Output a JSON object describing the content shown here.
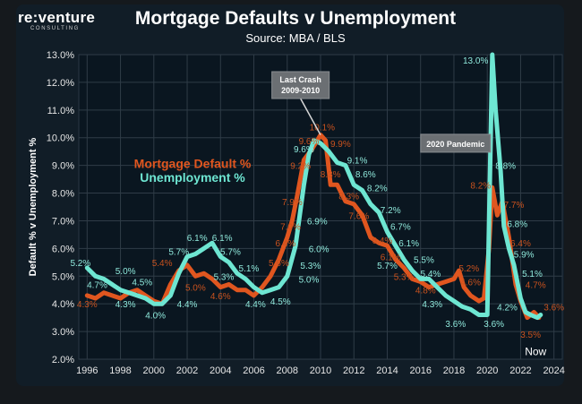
{
  "header": {
    "logo_main": "re:venture",
    "logo_sub": "CONSULTING",
    "title": "Mortgage Defaults v Unemployment",
    "subtitle": "Source: MBA / BLS"
  },
  "chart_data": {
    "type": "line",
    "ylabel": "Default % v Unemployment %",
    "ylim": [
      2.0,
      13.0
    ],
    "xlim": [
      1995.5,
      2024.5
    ],
    "y_ticks": [
      "2.0%",
      "3.0%",
      "4.0%",
      "5.0%",
      "6.0%",
      "7.0%",
      "8.0%",
      "9.0%",
      "10.0%",
      "11.0%",
      "12.0%",
      "13.0%"
    ],
    "x_ticks": [
      "1996",
      "1998",
      "2000",
      "2002",
      "2004",
      "2006",
      "2008",
      "2010",
      "2012",
      "2014",
      "2016",
      "2018",
      "2020",
      "2022",
      "2024"
    ],
    "grid": true,
    "legend": {
      "placement": "left-middle",
      "entries": [
        "Mortgage Default %",
        "Unemployment %"
      ]
    },
    "series": [
      {
        "name": "Mortgage Default %",
        "color": "#e0561f",
        "points": [
          [
            1996.0,
            4.3
          ],
          [
            1996.5,
            4.2
          ],
          [
            1997.0,
            4.4
          ],
          [
            1997.5,
            4.3
          ],
          [
            1998.0,
            4.2
          ],
          [
            1998.5,
            4.4
          ],
          [
            1999.0,
            4.5
          ],
          [
            1999.5,
            4.3
          ],
          [
            2000.0,
            4.1
          ],
          [
            2000.5,
            4.0
          ],
          [
            2001.0,
            4.7
          ],
          [
            2001.5,
            5.2
          ],
          [
            2002.0,
            5.4
          ],
          [
            2002.5,
            5.0
          ],
          [
            2003.0,
            5.1
          ],
          [
            2003.5,
            4.9
          ],
          [
            2004.0,
            4.6
          ],
          [
            2004.5,
            4.7
          ],
          [
            2005.0,
            4.5
          ],
          [
            2005.5,
            4.5
          ],
          [
            2006.0,
            4.3
          ],
          [
            2006.5,
            4.6
          ],
          [
            2007.0,
            5.0
          ],
          [
            2007.5,
            5.6
          ],
          [
            2008.0,
            6.4
          ],
          [
            2008.3,
            7.0
          ],
          [
            2008.6,
            7.9
          ],
          [
            2009.0,
            9.2
          ],
          [
            2009.5,
            9.6
          ],
          [
            2010.0,
            10.1
          ],
          [
            2010.3,
            9.9
          ],
          [
            2010.6,
            8.3
          ],
          [
            2011.0,
            8.3
          ],
          [
            2011.5,
            7.7
          ],
          [
            2012.0,
            7.6
          ],
          [
            2012.5,
            7.2
          ],
          [
            2013.0,
            6.4
          ],
          [
            2013.5,
            6.2
          ],
          [
            2014.0,
            6.1
          ],
          [
            2014.5,
            5.6
          ],
          [
            2015.0,
            5.3
          ],
          [
            2015.5,
            4.9
          ],
          [
            2016.0,
            4.8
          ],
          [
            2016.5,
            4.6
          ],
          [
            2017.0,
            4.7
          ],
          [
            2017.5,
            4.8
          ],
          [
            2018.0,
            4.9
          ],
          [
            2018.3,
            5.2
          ],
          [
            2018.6,
            4.6
          ],
          [
            2019.0,
            4.3
          ],
          [
            2019.5,
            4.1
          ],
          [
            2019.8,
            4.2
          ],
          [
            2020.1,
            6.0
          ],
          [
            2020.3,
            8.2
          ],
          [
            2020.6,
            7.2
          ],
          [
            2020.9,
            7.7
          ],
          [
            2021.3,
            6.4
          ],
          [
            2021.7,
            4.7
          ],
          [
            2022.0,
            4.1
          ],
          [
            2022.4,
            3.5
          ],
          [
            2022.8,
            3.7
          ],
          [
            2023.1,
            3.5
          ]
        ]
      },
      {
        "name": "Unemployment %",
        "color": "#6ee6d2",
        "points": [
          [
            1996.0,
            5.3
          ],
          [
            1996.5,
            5.0
          ],
          [
            1997.0,
            4.9
          ],
          [
            1997.5,
            4.7
          ],
          [
            1998.0,
            4.5
          ],
          [
            1998.5,
            4.4
          ],
          [
            1999.0,
            4.3
          ],
          [
            1999.5,
            4.2
          ],
          [
            2000.0,
            4.0
          ],
          [
            2000.5,
            4.0
          ],
          [
            2001.0,
            4.3
          ],
          [
            2001.5,
            5.1
          ],
          [
            2002.0,
            5.7
          ],
          [
            2002.5,
            5.8
          ],
          [
            2003.0,
            6.0
          ],
          [
            2003.5,
            6.2
          ],
          [
            2004.0,
            5.7
          ],
          [
            2004.5,
            5.5
          ],
          [
            2005.0,
            5.1
          ],
          [
            2005.5,
            4.9
          ],
          [
            2006.0,
            4.6
          ],
          [
            2006.5,
            4.4
          ],
          [
            2007.0,
            4.5
          ],
          [
            2007.5,
            4.6
          ],
          [
            2008.0,
            5.0
          ],
          [
            2008.5,
            6.1
          ],
          [
            2009.0,
            8.3
          ],
          [
            2009.3,
            9.4
          ],
          [
            2009.6,
            9.9
          ],
          [
            2010.0,
            9.8
          ],
          [
            2010.5,
            9.5
          ],
          [
            2011.0,
            9.1
          ],
          [
            2011.5,
            9.0
          ],
          [
            2012.0,
            8.3
          ],
          [
            2012.5,
            8.1
          ],
          [
            2013.0,
            7.6
          ],
          [
            2013.5,
            7.3
          ],
          [
            2014.0,
            6.6
          ],
          [
            2014.5,
            6.1
          ],
          [
            2015.0,
            5.6
          ],
          [
            2015.5,
            5.2
          ],
          [
            2016.0,
            4.9
          ],
          [
            2016.5,
            4.9
          ],
          [
            2017.0,
            4.6
          ],
          [
            2017.5,
            4.3
          ],
          [
            2018.0,
            4.1
          ],
          [
            2018.5,
            3.9
          ],
          [
            2019.0,
            3.8
          ],
          [
            2019.5,
            3.6
          ],
          [
            2020.0,
            3.6
          ],
          [
            2020.3,
            13.0
          ],
          [
            2020.5,
            11.0
          ],
          [
            2020.8,
            8.8
          ],
          [
            2021.0,
            6.8
          ],
          [
            2021.3,
            6.0
          ],
          [
            2021.6,
            5.4
          ],
          [
            2022.0,
            4.2
          ],
          [
            2022.3,
            3.7
          ],
          [
            2022.6,
            3.6
          ],
          [
            2023.0,
            3.5
          ],
          [
            2023.2,
            3.6
          ]
        ]
      }
    ],
    "data_labels": [
      {
        "text": "4.3%",
        "x": 1996.0,
        "y": 4.0,
        "series": "Mortgage Default %"
      },
      {
        "text": "5.4%",
        "x": 2000.5,
        "y": 5.5,
        "series": "Mortgage Default %"
      },
      {
        "text": "5.0%",
        "x": 2002.5,
        "y": 4.6,
        "series": "Mortgage Default %"
      },
      {
        "text": "4.6%",
        "x": 2004.0,
        "y": 4.3,
        "series": "Mortgage Default %"
      },
      {
        "text": "5.6%",
        "x": 2007.5,
        "y": 5.5,
        "series": "Mortgage Default %"
      },
      {
        "text": "6.4%",
        "x": 2007.9,
        "y": 6.2,
        "series": "Mortgage Default %"
      },
      {
        "text": "7.0%",
        "x": 2008.2,
        "y": 6.8,
        "series": "Mortgage Default %"
      },
      {
        "text": "7.9%",
        "x": 2008.3,
        "y": 7.7,
        "series": "Mortgage Default %"
      },
      {
        "text": "9.2%",
        "x": 2008.8,
        "y": 9.0,
        "series": "Mortgage Default %"
      },
      {
        "text": "9.6%",
        "x": 2009.3,
        "y": 9.9,
        "series": "Mortgage Default %"
      },
      {
        "text": "10.1%",
        "x": 2010.1,
        "y": 10.4,
        "series": "Mortgage Default %"
      },
      {
        "text": "9.9%",
        "x": 2011.2,
        "y": 9.8,
        "series": "Mortgage Default %"
      },
      {
        "text": "8.3%",
        "x": 2010.6,
        "y": 8.7,
        "series": "Mortgage Default %"
      },
      {
        "text": "8.3%",
        "x": 2011.7,
        "y": 7.9,
        "series": "Mortgage Default %"
      },
      {
        "text": "7.6%",
        "x": 2012.3,
        "y": 7.2,
        "series": "Mortgage Default %"
      },
      {
        "text": "6.4%",
        "x": 2013.7,
        "y": 6.3,
        "series": "Mortgage Default %"
      },
      {
        "text": "6.1%",
        "x": 2014.2,
        "y": 5.7,
        "series": "Mortgage Default %"
      },
      {
        "text": "5.3%",
        "x": 2015.0,
        "y": 5.0,
        "series": "Mortgage Default %"
      },
      {
        "text": "4.8%",
        "x": 2016.3,
        "y": 4.5,
        "series": "Mortgage Default %"
      },
      {
        "text": "5.2%",
        "x": 2018.9,
        "y": 5.3,
        "series": "Mortgage Default %"
      },
      {
        "text": "4.6%",
        "x": 2019.0,
        "y": 4.8,
        "series": "Mortgage Default %"
      },
      {
        "text": "8.2%",
        "x": 2019.6,
        "y": 8.3,
        "series": "Mortgage Default %"
      },
      {
        "text": "7.7%",
        "x": 2021.6,
        "y": 7.6,
        "series": "Mortgage Default %"
      },
      {
        "text": "6.4%",
        "x": 2022.0,
        "y": 6.2,
        "series": "Mortgage Default %"
      },
      {
        "text": "4.7%",
        "x": 2022.9,
        "y": 4.7,
        "series": "Mortgage Default %"
      },
      {
        "text": "3.5%",
        "x": 2022.6,
        "y": 2.9,
        "series": "Mortgage Default %"
      },
      {
        "text": "3.6%",
        "x": 2024.0,
        "y": 3.9,
        "series": "Mortgage Default %"
      },
      {
        "text": "5.2%",
        "x": 1995.6,
        "y": 5.5,
        "series": "Unemployment %"
      },
      {
        "text": "4.7%",
        "x": 1996.6,
        "y": 4.7,
        "series": "Unemployment %"
      },
      {
        "text": "5.0%",
        "x": 1998.3,
        "y": 5.2,
        "series": "Unemployment %"
      },
      {
        "text": "4.5%",
        "x": 1999.3,
        "y": 4.8,
        "series": "Unemployment %"
      },
      {
        "text": "4.3%",
        "x": 1998.3,
        "y": 4.0,
        "series": "Unemployment %"
      },
      {
        "text": "4.0%",
        "x": 2000.1,
        "y": 3.6,
        "series": "Unemployment %"
      },
      {
        "text": "4.4%",
        "x": 2002.0,
        "y": 4.0,
        "series": "Unemployment %"
      },
      {
        "text": "5.7%",
        "x": 2001.5,
        "y": 5.9,
        "series": "Unemployment %"
      },
      {
        "text": "6.1%",
        "x": 2002.6,
        "y": 6.4,
        "series": "Unemployment %"
      },
      {
        "text": "6.1%",
        "x": 2004.1,
        "y": 6.4,
        "series": "Unemployment %"
      },
      {
        "text": "5.7%",
        "x": 2004.6,
        "y": 5.9,
        "series": "Unemployment %"
      },
      {
        "text": "5.3%",
        "x": 2004.2,
        "y": 5.0,
        "series": "Unemployment %"
      },
      {
        "text": "5.1%",
        "x": 2005.7,
        "y": 5.3,
        "series": "Unemployment %"
      },
      {
        "text": "4.4%",
        "x": 2006.1,
        "y": 4.0,
        "series": "Unemployment %"
      },
      {
        "text": "4.5%",
        "x": 2007.6,
        "y": 4.1,
        "series": "Unemployment %"
      },
      {
        "text": "5.0%",
        "x": 2009.3,
        "y": 4.9,
        "series": "Unemployment %"
      },
      {
        "text": "5.3%",
        "x": 2009.4,
        "y": 5.4,
        "series": "Unemployment %"
      },
      {
        "text": "6.0%",
        "x": 2009.9,
        "y": 6.0,
        "series": "Unemployment %"
      },
      {
        "text": "6.9%",
        "x": 2009.8,
        "y": 7.0,
        "series": "Unemployment %"
      },
      {
        "text": "9.6%",
        "x": 2009.0,
        "y": 9.6,
        "series": "Unemployment %"
      },
      {
        "text": "9.1%",
        "x": 2012.2,
        "y": 9.2,
        "series": "Unemployment %"
      },
      {
        "text": "8.6%",
        "x": 2012.7,
        "y": 8.7,
        "series": "Unemployment %"
      },
      {
        "text": "8.2%",
        "x": 2013.4,
        "y": 8.2,
        "series": "Unemployment %"
      },
      {
        "text": "7.2%",
        "x": 2014.2,
        "y": 7.4,
        "series": "Unemployment %"
      },
      {
        "text": "6.7%",
        "x": 2014.8,
        "y": 6.8,
        "series": "Unemployment %"
      },
      {
        "text": "6.1%",
        "x": 2015.3,
        "y": 6.2,
        "series": "Unemployment %"
      },
      {
        "text": "5.7%",
        "x": 2014.0,
        "y": 5.4,
        "series": "Unemployment %"
      },
      {
        "text": "5.5%",
        "x": 2016.2,
        "y": 5.6,
        "series": "Unemployment %"
      },
      {
        "text": "5.4%",
        "x": 2016.6,
        "y": 5.1,
        "series": "Unemployment %"
      },
      {
        "text": "4.3%",
        "x": 2016.7,
        "y": 4.0,
        "series": "Unemployment %"
      },
      {
        "text": "3.6%",
        "x": 2018.1,
        "y": 3.3,
        "series": "Unemployment %"
      },
      {
        "text": "3.6%",
        "x": 2020.4,
        "y": 3.3,
        "series": "Unemployment %"
      },
      {
        "text": "4.2%",
        "x": 2021.2,
        "y": 3.9,
        "series": "Unemployment %"
      },
      {
        "text": "13.0%",
        "x": 2019.3,
        "y": 12.8,
        "series": "Unemployment %"
      },
      {
        "text": "8.8%",
        "x": 2021.1,
        "y": 9.0,
        "series": "Unemployment %"
      },
      {
        "text": "6.8%",
        "x": 2021.8,
        "y": 6.9,
        "series": "Unemployment %"
      },
      {
        "text": "5.9%",
        "x": 2022.2,
        "y": 5.8,
        "series": "Unemployment %"
      },
      {
        "text": "5.1%",
        "x": 2022.7,
        "y": 5.1,
        "series": "Unemployment %"
      }
    ],
    "annotations": [
      {
        "id": "last-crash",
        "lines": [
          "Last Crash",
          "2009-2010"
        ],
        "x": 2008.8,
        "y": 11.9,
        "pointer": [
          2010.0,
          10.1
        ]
      },
      {
        "id": "pandemic",
        "lines": [
          "2020 Pandemic"
        ],
        "x": 2018.1,
        "y": 9.8,
        "pointer": null
      }
    ],
    "note": "Now",
    "note_position": {
      "x": 2022.9,
      "y": 2.15
    }
  }
}
